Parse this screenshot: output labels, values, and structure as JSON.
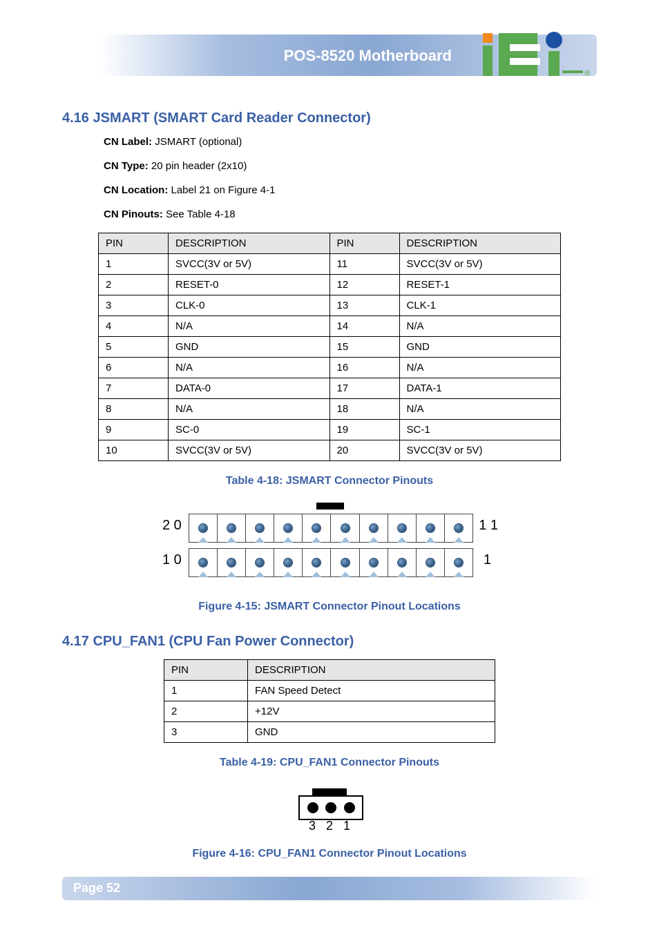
{
  "banner": {
    "product": "POS-8520 Motherboard",
    "logo": {
      "i_color": "#f08a1d",
      "e_color": "#5aa84f",
      "dot_color": "#1d4fa3",
      "reg_color": "#5aa84f"
    }
  },
  "section1": {
    "heading": "4.16 JSMART (SMART Card Reader Connector)",
    "cn_label": "CN Label:",
    "cn_value": "JSMART (optional)",
    "type_label": "CN Type:",
    "type_value": "20 pin header (2x10)",
    "loc_label": "CN Location:",
    "loc_value": "Label 21 on Figure 4-1",
    "pin_label": "CN Pinouts:",
    "pin_value": "See Table 4-18",
    "table": {
      "headers": [
        "PIN",
        "DESCRIPTION",
        "PIN",
        "DESCRIPTION"
      ],
      "rows": [
        [
          "1",
          "SVCC(3V or 5V)",
          "11",
          "SVCC(3V or 5V)"
        ],
        [
          "2",
          "RESET-0",
          "12",
          "RESET-1"
        ],
        [
          "3",
          "CLK-0",
          "13",
          "CLK-1"
        ],
        [
          "4",
          "N/A",
          "14",
          "N/A"
        ],
        [
          "5",
          "GND",
          "15",
          "GND"
        ],
        [
          "6",
          "N/A",
          "16",
          "N/A"
        ],
        [
          "7",
          "DATA-0",
          "17",
          "DATA-1"
        ],
        [
          "8",
          "N/A",
          "18",
          "N/A"
        ],
        [
          "9",
          "SC-0",
          "19",
          "SC-1"
        ],
        [
          "10",
          "SVCC(3V or 5V)",
          "20",
          "SVCC(3V or 5V)"
        ]
      ]
    },
    "table_caption": "Table 4-18: JSMART Connector Pinouts",
    "figure": {
      "top_left_label": "2 0",
      "bot_left_label": "1 0",
      "top_right_label": "1 1",
      "bot_right_label": "1",
      "cells_per_row": 10,
      "dot_color": "#3a628c",
      "tri_color": "#9fbedc",
      "caption": "Figure 4-15: JSMART Connector Pinout Locations"
    }
  },
  "section2": {
    "heading": "4.17 CPU_FAN1 (CPU Fan Power Connector)",
    "table": {
      "headers": [
        "PIN",
        "DESCRIPTION"
      ],
      "rows": [
        [
          "1",
          "FAN Speed Detect"
        ],
        [
          "2",
          "+12V"
        ],
        [
          "3",
          "GND"
        ]
      ]
    },
    "table_caption": "Table 4-19: CPU_FAN1 Connector Pinouts",
    "figure": {
      "labels": [
        "3",
        "2",
        "1"
      ],
      "caption": "Figure 4-16: CPU_FAN1 Connector Pinout Locations"
    }
  },
  "footer": {
    "page_label": "Page 52"
  },
  "colors": {
    "heading": "#3a5fa5",
    "banner_grad_mid": "#89a7d2",
    "table_header_bg": "#e6e6e6"
  }
}
